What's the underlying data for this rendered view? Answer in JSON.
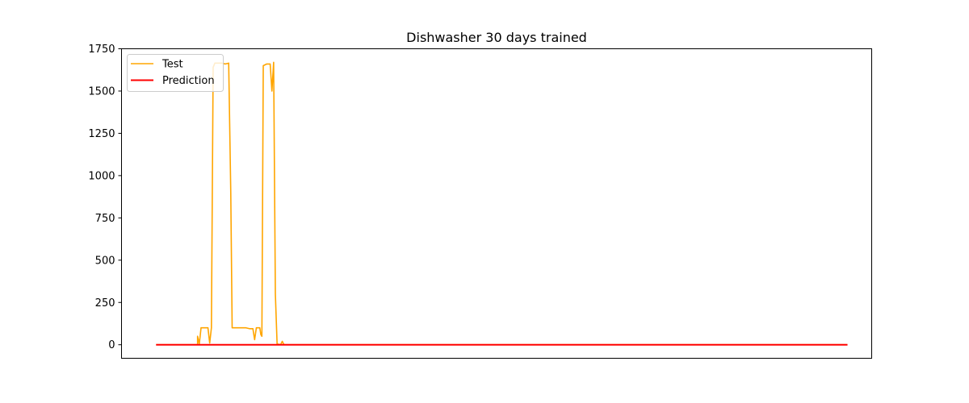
{
  "chart_data": {
    "type": "line",
    "title": "Dishwasher 30 days trained",
    "xlabel": "",
    "ylabel": "",
    "x_ticks_visible": false,
    "xlim": [
      -10,
      207
    ],
    "ylim": [
      -80,
      1750
    ],
    "yticks": [
      0,
      250,
      500,
      750,
      1000,
      1250,
      1500,
      1750
    ],
    "legend": {
      "location": "upper-left"
    },
    "series": [
      {
        "name": "Test",
        "color": "#FFA500",
        "points": [
          [
            0,
            0
          ],
          [
            11,
            0
          ],
          [
            12,
            0
          ],
          [
            12,
            50
          ],
          [
            12.5,
            5
          ],
          [
            13,
            100
          ],
          [
            14,
            100
          ],
          [
            15,
            100
          ],
          [
            15.5,
            10
          ],
          [
            16,
            100
          ],
          [
            16.5,
            1640
          ],
          [
            17,
            1665
          ],
          [
            18,
            1665
          ],
          [
            19,
            1665
          ],
          [
            20,
            1660
          ],
          [
            21,
            1665
          ],
          [
            21.6,
            900
          ],
          [
            22,
            100
          ],
          [
            23,
            100
          ],
          [
            24,
            100
          ],
          [
            25,
            100
          ],
          [
            26,
            100
          ],
          [
            27,
            95
          ],
          [
            28,
            95
          ],
          [
            28.5,
            30
          ],
          [
            29,
            100
          ],
          [
            30,
            100
          ],
          [
            30.3,
            60
          ],
          [
            30.6,
            50
          ],
          [
            31,
            1650
          ],
          [
            32,
            1660
          ],
          [
            33,
            1660
          ],
          [
            33.5,
            1500
          ],
          [
            34,
            1670
          ],
          [
            34.5,
            300
          ],
          [
            35,
            5
          ],
          [
            36,
            0
          ],
          [
            36.5,
            20
          ],
          [
            37,
            0
          ],
          [
            40,
            0
          ],
          [
            200,
            0
          ]
        ]
      },
      {
        "name": "Prediction",
        "color": "#FF0000",
        "points": [
          [
            0,
            0
          ],
          [
            200,
            0
          ]
        ]
      }
    ]
  }
}
